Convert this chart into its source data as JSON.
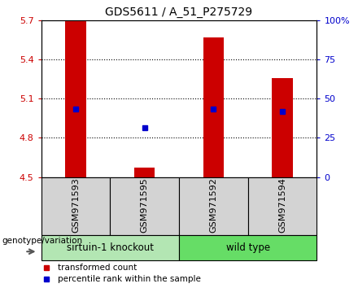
{
  "title": "GDS5611 / A_51_P275729",
  "samples": [
    "GSM971593",
    "GSM971595",
    "GSM971592",
    "GSM971594"
  ],
  "bar_values": [
    5.7,
    4.57,
    5.57,
    5.26
  ],
  "bar_base": 4.5,
  "percentile_values": [
    5.02,
    4.88,
    5.02,
    5.0
  ],
  "ylim_left": [
    4.5,
    5.7
  ],
  "ylim_right": [
    0,
    100
  ],
  "yticks_left": [
    4.5,
    4.8,
    5.1,
    5.4,
    5.7
  ],
  "yticks_right": [
    0,
    25,
    50,
    75,
    100
  ],
  "ytick_labels_left": [
    "4.5",
    "4.8",
    "5.1",
    "5.4",
    "5.7"
  ],
  "ytick_labels_right": [
    "0",
    "25",
    "50",
    "75",
    "100%"
  ],
  "grid_lines": [
    4.8,
    5.1,
    5.4
  ],
  "bar_color": "#cc0000",
  "percentile_color": "#0000cc",
  "group1_label": "sirtuin-1 knockout",
  "group2_label": "wild type",
  "group1_color": "#b3e6b3",
  "group2_color": "#66dd66",
  "group_box_color": "#d3d3d3",
  "legend_bar_label": "transformed count",
  "legend_pct_label": "percentile rank within the sample",
  "genotype_label": "genotype/variation",
  "bar_width": 0.3,
  "marker_size": 5,
  "title_fontsize": 10,
  "tick_fontsize": 8,
  "label_fontsize": 8,
  "group_fontsize": 8.5
}
